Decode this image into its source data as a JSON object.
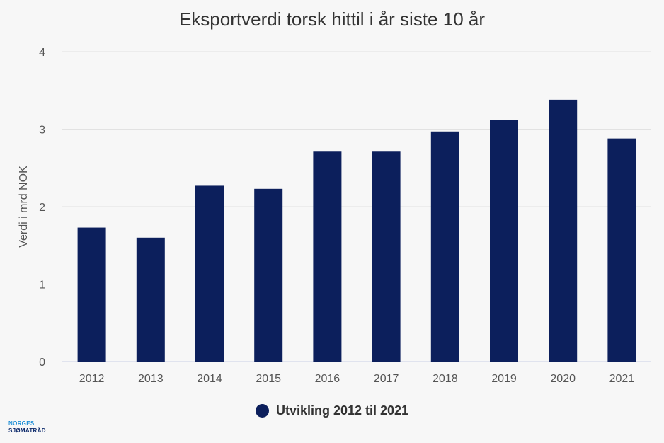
{
  "chart_data": {
    "type": "bar",
    "title": "Eksportverdi torsk hittil i år siste 10 år",
    "xlabel": "",
    "ylabel": "Verdi i mrd NOK",
    "categories": [
      "2012",
      "2013",
      "2014",
      "2015",
      "2016",
      "2017",
      "2018",
      "2019",
      "2020",
      "2021"
    ],
    "series": [
      {
        "name": "Utvikling 2012 til 2021",
        "values": [
          1.73,
          1.6,
          2.27,
          2.23,
          2.71,
          2.71,
          2.97,
          3.12,
          3.38,
          2.88
        ]
      }
    ],
    "ylim": [
      0,
      4
    ],
    "yticks": [
      "0",
      "1",
      "2",
      "3",
      "4"
    ],
    "grid": true,
    "legend_position": "bottom-center",
    "colors": {
      "bar": "#0c1f5c",
      "grid": "#e2e2e2",
      "axis_text": "#555555"
    }
  },
  "logo": {
    "line1": "NORGES",
    "line2": "SJØMATRÅD"
  }
}
